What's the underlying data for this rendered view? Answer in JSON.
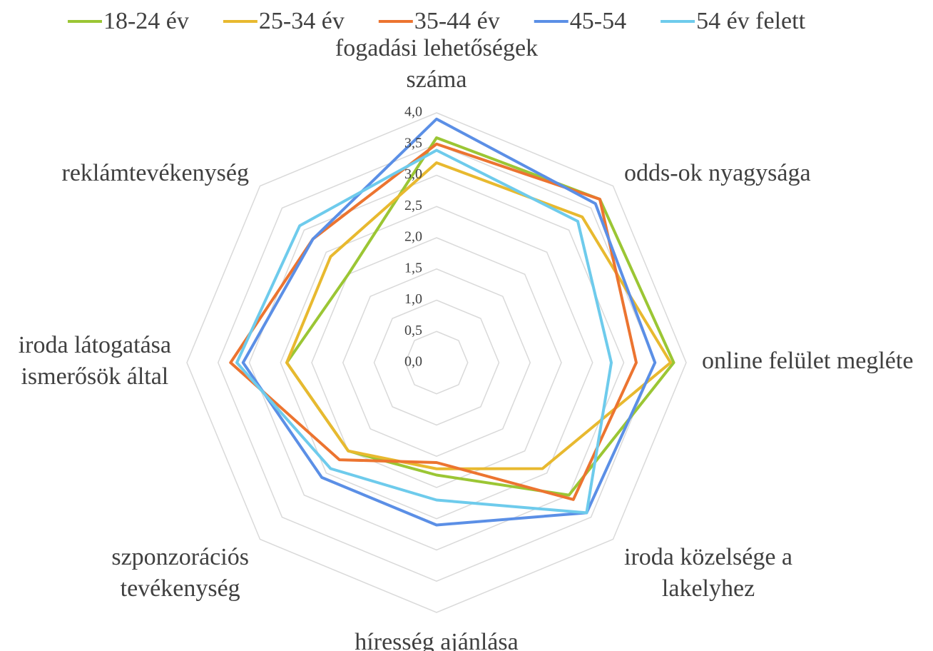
{
  "chart_data": {
    "type": "radar",
    "categories": [
      "fogadási lehetőségek száma",
      "odds-ok nyagysága",
      "online felület megléte",
      "iroda közelsége a lakelyhez",
      "híresség ajánlása",
      "szponzorációs tevékenység",
      "iroda látogatása ismerősök által",
      "reklámtevékenység"
    ],
    "series": [
      {
        "name": "18-24 év",
        "color": "#9bc634",
        "values": [
          3.6,
          3.7,
          3.8,
          3.0,
          1.8,
          2.0,
          2.4,
          2.0
        ]
      },
      {
        "name": "25-34 év",
        "color": "#e8b92f",
        "values": [
          3.2,
          3.3,
          3.75,
          2.4,
          1.7,
          2.0,
          2.4,
          2.4
        ]
      },
      {
        "name": "35-44 év",
        "color": "#ec7430",
        "values": [
          3.5,
          3.7,
          3.2,
          3.1,
          1.6,
          2.2,
          3.3,
          2.8
        ]
      },
      {
        "name": "45-54",
        "color": "#5b8fe6",
        "values": [
          3.9,
          3.6,
          3.5,
          3.4,
          2.6,
          2.6,
          3.1,
          2.8
        ]
      },
      {
        "name": "54 év felett",
        "color": "#6ecbec",
        "values": [
          3.4,
          3.2,
          2.8,
          3.4,
          2.2,
          2.4,
          3.2,
          3.1
        ]
      }
    ],
    "ylim": [
      0,
      4
    ],
    "yticks": [
      {
        "value": 0,
        "label": "0,0"
      },
      {
        "value": 0.5,
        "label": "0,5"
      },
      {
        "value": 1,
        "label": "1,0"
      },
      {
        "value": 1.5,
        "label": "1,5"
      },
      {
        "value": 2,
        "label": "2,0"
      },
      {
        "value": 2.5,
        "label": "2,5"
      },
      {
        "value": 3,
        "label": "3,0"
      },
      {
        "value": 3.5,
        "label": "3,5"
      },
      {
        "value": 4,
        "label": "4,0"
      }
    ],
    "grid": true,
    "legend": "top"
  }
}
